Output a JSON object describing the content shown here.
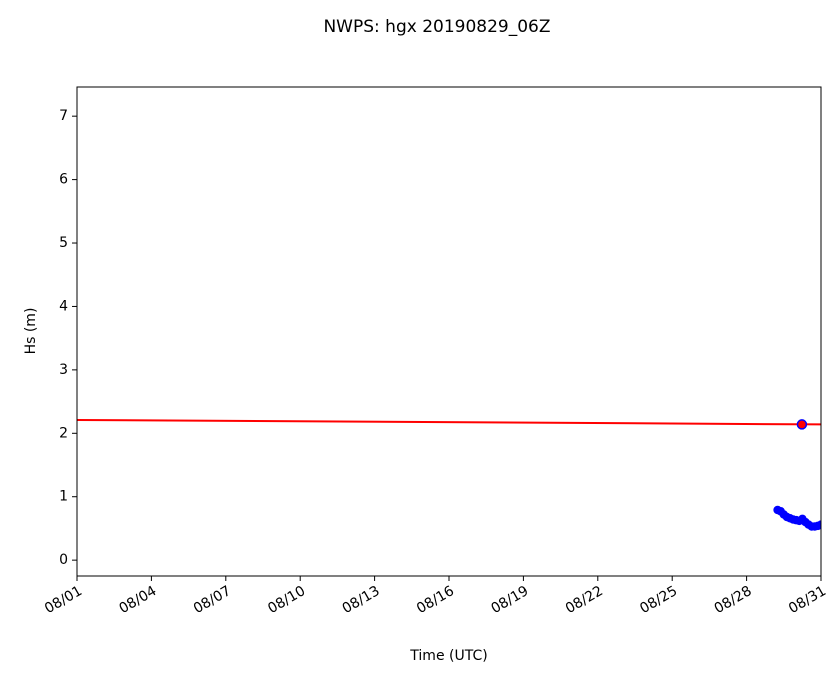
{
  "chart_data": {
    "type": "line",
    "title": "NWPS: hgx 20190829_06Z",
    "x_label": "Time (UTC)",
    "y_label": "Hs (m)",
    "xlim": [
      1,
      31
    ],
    "xticks": [
      {
        "value": 1,
        "label": "08/01"
      },
      {
        "value": 4,
        "label": "08/04"
      },
      {
        "value": 7,
        "label": "08/07"
      },
      {
        "value": 10,
        "label": "08/10"
      },
      {
        "value": 13,
        "label": "08/13"
      },
      {
        "value": 16,
        "label": "08/16"
      },
      {
        "value": 19,
        "label": "08/19"
      },
      {
        "value": 22,
        "label": "08/22"
      },
      {
        "value": 25,
        "label": "08/25"
      },
      {
        "value": 28,
        "label": "08/28"
      },
      {
        "value": 31,
        "label": "08/31"
      }
    ],
    "ylim": [
      -0.25,
      7.46
    ],
    "yticks": [
      0,
      1,
      2,
      3,
      4,
      5,
      6,
      7
    ],
    "grid": false,
    "series": [
      {
        "color": "#ff0000",
        "style": "line",
        "x": [
          1,
          31
        ],
        "values": [
          2.21,
          2.14
        ]
      },
      {
        "color": "#0000ff",
        "style": "line-dots",
        "x": [
          29.25,
          29.375,
          29.5,
          29.625,
          29.75,
          29.875,
          30,
          30.125,
          30.25,
          30.375,
          30.5,
          30.625,
          30.75,
          30.875,
          31
        ],
        "values": [
          0.79,
          0.77,
          0.72,
          0.68,
          0.66,
          0.64,
          0.63,
          0.62,
          0.65,
          0.6,
          0.56,
          0.53,
          0.53,
          0.54,
          0.56
        ]
      },
      {
        "color": "#0000ff",
        "fill": "#ff0000",
        "style": "marker",
        "x": [
          30.23
        ],
        "values": [
          2.14
        ]
      }
    ]
  }
}
